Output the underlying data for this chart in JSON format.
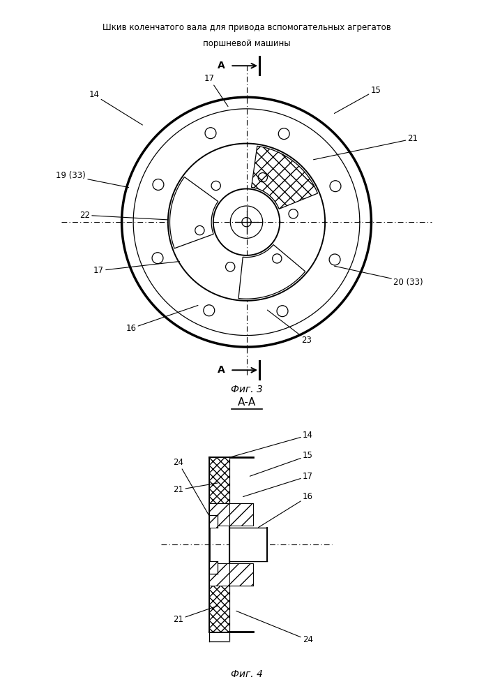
{
  "title_line1": "Шкив коленчатого вала для привода вспомогательных агрегатов",
  "title_line2": "поршневой машины",
  "fig3_label": "Фиг. 3",
  "fig4_label": "Фиг. 4",
  "bg_color": "#ffffff",
  "line_color": "#000000"
}
